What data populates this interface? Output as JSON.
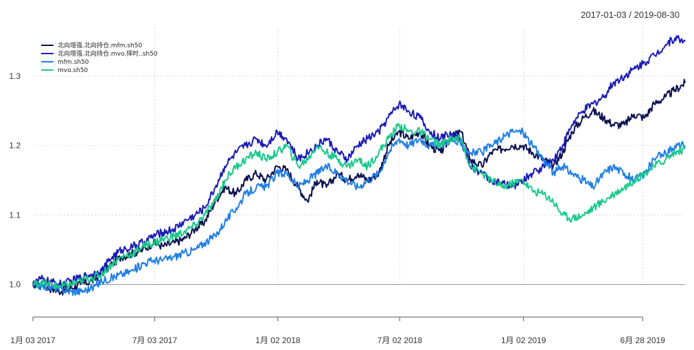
{
  "chart_data": {
    "type": "line",
    "date_range": "2017-01-03 / 2019-08-30",
    "x_tick_labels": [
      "1月 03 2017",
      "7月 03 2017",
      "1月 02 2018",
      "7月 02 2018",
      "1月 02 2019",
      "6月 28 2019"
    ],
    "x_tick_dates": [
      "2017-01-03",
      "2017-07-03",
      "2018-01-02",
      "2018-07-02",
      "2019-01-02",
      "2019-06-28"
    ],
    "xlim": [
      "2017-01-03",
      "2019-08-30"
    ],
    "ylim": [
      0.96,
      1.37
    ],
    "y_ticks": [
      1.0,
      1.1,
      1.2,
      1.3
    ],
    "y_tick_labels": [
      "1.0",
      "1.1",
      "1.2",
      "1.3"
    ],
    "reference_line": 1.0,
    "grid": true,
    "legend_position": "top-left",
    "series": [
      {
        "name": "北向增强.北向持仓.mfm.sh50",
        "color": "#0b1050",
        "points": [
          [
            "2017-01-03",
            1.0
          ],
          [
            "2017-01-15",
            1.0
          ],
          [
            "2017-02-01",
            0.993
          ],
          [
            "2017-02-15",
            0.99
          ],
          [
            "2017-03-01",
            0.995
          ],
          [
            "2017-03-15",
            1.0
          ],
          [
            "2017-04-01",
            1.005
          ],
          [
            "2017-04-15",
            1.015
          ],
          [
            "2017-05-01",
            1.03
          ],
          [
            "2017-05-15",
            1.04
          ],
          [
            "2017-06-01",
            1.045
          ],
          [
            "2017-06-15",
            1.05
          ],
          [
            "2017-07-01",
            1.06
          ],
          [
            "2017-07-15",
            1.055
          ],
          [
            "2017-08-01",
            1.06
          ],
          [
            "2017-08-15",
            1.065
          ],
          [
            "2017-09-01",
            1.08
          ],
          [
            "2017-09-15",
            1.09
          ],
          [
            "2017-10-01",
            1.12
          ],
          [
            "2017-10-15",
            1.14
          ],
          [
            "2017-11-01",
            1.13
          ],
          [
            "2017-11-15",
            1.15
          ],
          [
            "2017-12-01",
            1.16
          ],
          [
            "2017-12-15",
            1.15
          ],
          [
            "2018-01-01",
            1.17
          ],
          [
            "2018-01-15",
            1.165
          ],
          [
            "2018-02-01",
            1.14
          ],
          [
            "2018-02-15",
            1.12
          ],
          [
            "2018-03-01",
            1.15
          ],
          [
            "2018-03-15",
            1.14
          ],
          [
            "2018-04-01",
            1.16
          ],
          [
            "2018-04-15",
            1.15
          ],
          [
            "2018-05-01",
            1.16
          ],
          [
            "2018-05-15",
            1.15
          ],
          [
            "2018-06-01",
            1.16
          ],
          [
            "2018-06-15",
            1.2
          ],
          [
            "2018-07-01",
            1.22
          ],
          [
            "2018-07-15",
            1.21
          ],
          [
            "2018-08-01",
            1.22
          ],
          [
            "2018-08-15",
            1.2
          ],
          [
            "2018-09-01",
            1.19
          ],
          [
            "2018-09-15",
            1.21
          ],
          [
            "2018-10-01",
            1.22
          ],
          [
            "2018-10-15",
            1.18
          ],
          [
            "2018-11-01",
            1.17
          ],
          [
            "2018-11-15",
            1.19
          ],
          [
            "2018-12-01",
            1.195
          ],
          [
            "2018-12-15",
            1.2
          ],
          [
            "2019-01-01",
            1.2
          ],
          [
            "2019-01-15",
            1.19
          ],
          [
            "2019-02-01",
            1.18
          ],
          [
            "2019-02-15",
            1.17
          ],
          [
            "2019-03-01",
            1.19
          ],
          [
            "2019-03-15",
            1.22
          ],
          [
            "2019-04-01",
            1.24
          ],
          [
            "2019-04-15",
            1.25
          ],
          [
            "2019-05-01",
            1.24
          ],
          [
            "2019-05-15",
            1.23
          ],
          [
            "2019-06-01",
            1.23
          ],
          [
            "2019-06-15",
            1.245
          ],
          [
            "2019-07-01",
            1.24
          ],
          [
            "2019-07-15",
            1.26
          ],
          [
            "2019-08-01",
            1.27
          ],
          [
            "2019-08-15",
            1.28
          ],
          [
            "2019-08-30",
            1.29
          ]
        ]
      },
      {
        "name": "北向增强.北向持仓.mvo.择时..sh50",
        "color": "#1a1ab8",
        "points": [
          [
            "2017-01-03",
            1.0
          ],
          [
            "2017-01-15",
            1.008
          ],
          [
            "2017-02-01",
            1.003
          ],
          [
            "2017-02-15",
            1.0
          ],
          [
            "2017-03-01",
            1.005
          ],
          [
            "2017-03-15",
            1.01
          ],
          [
            "2017-04-01",
            1.015
          ],
          [
            "2017-04-15",
            1.02
          ],
          [
            "2017-05-01",
            1.04
          ],
          [
            "2017-05-15",
            1.05
          ],
          [
            "2017-06-01",
            1.055
          ],
          [
            "2017-06-15",
            1.06
          ],
          [
            "2017-07-01",
            1.07
          ],
          [
            "2017-07-15",
            1.075
          ],
          [
            "2017-08-01",
            1.08
          ],
          [
            "2017-08-15",
            1.09
          ],
          [
            "2017-09-01",
            1.1
          ],
          [
            "2017-09-15",
            1.11
          ],
          [
            "2017-10-01",
            1.14
          ],
          [
            "2017-10-15",
            1.17
          ],
          [
            "2017-11-01",
            1.19
          ],
          [
            "2017-11-15",
            1.2
          ],
          [
            "2017-12-01",
            1.21
          ],
          [
            "2017-12-15",
            1.2
          ],
          [
            "2018-01-01",
            1.22
          ],
          [
            "2018-01-15",
            1.21
          ],
          [
            "2018-02-01",
            1.18
          ],
          [
            "2018-02-15",
            1.19
          ],
          [
            "2018-03-01",
            1.2
          ],
          [
            "2018-03-15",
            1.21
          ],
          [
            "2018-04-01",
            1.19
          ],
          [
            "2018-04-15",
            1.18
          ],
          [
            "2018-05-01",
            1.2
          ],
          [
            "2018-05-15",
            1.21
          ],
          [
            "2018-06-01",
            1.22
          ],
          [
            "2018-06-15",
            1.24
          ],
          [
            "2018-07-01",
            1.26
          ],
          [
            "2018-07-15",
            1.25
          ],
          [
            "2018-08-01",
            1.24
          ],
          [
            "2018-08-15",
            1.22
          ],
          [
            "2018-09-01",
            1.21
          ],
          [
            "2018-09-15",
            1.22
          ],
          [
            "2018-10-01",
            1.21
          ],
          [
            "2018-10-15",
            1.17
          ],
          [
            "2018-11-01",
            1.16
          ],
          [
            "2018-11-15",
            1.15
          ],
          [
            "2018-12-01",
            1.145
          ],
          [
            "2018-12-15",
            1.14
          ],
          [
            "2019-01-01",
            1.15
          ],
          [
            "2019-01-15",
            1.16
          ],
          [
            "2019-02-01",
            1.17
          ],
          [
            "2019-02-15",
            1.18
          ],
          [
            "2019-03-01",
            1.2
          ],
          [
            "2019-03-15",
            1.23
          ],
          [
            "2019-04-01",
            1.25
          ],
          [
            "2019-04-15",
            1.26
          ],
          [
            "2019-05-01",
            1.27
          ],
          [
            "2019-05-15",
            1.29
          ],
          [
            "2019-06-01",
            1.3
          ],
          [
            "2019-06-15",
            1.31
          ],
          [
            "2019-07-01",
            1.32
          ],
          [
            "2019-07-15",
            1.33
          ],
          [
            "2019-08-01",
            1.345
          ],
          [
            "2019-08-15",
            1.355
          ],
          [
            "2019-08-30",
            1.35
          ]
        ]
      },
      {
        "name": "mfm.sh50",
        "color": "#1f7fe6",
        "points": [
          [
            "2017-01-03",
            1.0
          ],
          [
            "2017-01-15",
            0.998
          ],
          [
            "2017-02-01",
            0.995
          ],
          [
            "2017-02-15",
            0.993
          ],
          [
            "2017-03-01",
            0.99
          ],
          [
            "2017-03-15",
            0.99
          ],
          [
            "2017-04-01",
            0.995
          ],
          [
            "2017-04-15",
            1.005
          ],
          [
            "2017-05-01",
            1.01
          ],
          [
            "2017-05-15",
            1.015
          ],
          [
            "2017-06-01",
            1.02
          ],
          [
            "2017-06-15",
            1.03
          ],
          [
            "2017-07-01",
            1.035
          ],
          [
            "2017-07-15",
            1.035
          ],
          [
            "2017-08-01",
            1.04
          ],
          [
            "2017-08-15",
            1.045
          ],
          [
            "2017-09-01",
            1.05
          ],
          [
            "2017-09-15",
            1.06
          ],
          [
            "2017-10-01",
            1.07
          ],
          [
            "2017-10-15",
            1.09
          ],
          [
            "2017-11-01",
            1.11
          ],
          [
            "2017-11-15",
            1.13
          ],
          [
            "2017-12-01",
            1.14
          ],
          [
            "2017-12-15",
            1.14
          ],
          [
            "2018-01-01",
            1.16
          ],
          [
            "2018-01-15",
            1.16
          ],
          [
            "2018-02-01",
            1.14
          ],
          [
            "2018-02-15",
            1.15
          ],
          [
            "2018-03-01",
            1.16
          ],
          [
            "2018-03-15",
            1.17
          ],
          [
            "2018-04-01",
            1.16
          ],
          [
            "2018-04-15",
            1.15
          ],
          [
            "2018-05-01",
            1.14
          ],
          [
            "2018-05-15",
            1.15
          ],
          [
            "2018-06-01",
            1.16
          ],
          [
            "2018-06-15",
            1.19
          ],
          [
            "2018-07-01",
            1.21
          ],
          [
            "2018-07-15",
            1.2
          ],
          [
            "2018-08-01",
            1.21
          ],
          [
            "2018-08-15",
            1.2
          ],
          [
            "2018-09-01",
            1.2
          ],
          [
            "2018-09-15",
            1.21
          ],
          [
            "2018-10-01",
            1.2
          ],
          [
            "2018-10-15",
            1.19
          ],
          [
            "2018-11-01",
            1.19
          ],
          [
            "2018-11-15",
            1.2
          ],
          [
            "2018-12-01",
            1.21
          ],
          [
            "2018-12-15",
            1.22
          ],
          [
            "2019-01-01",
            1.22
          ],
          [
            "2019-01-15",
            1.2
          ],
          [
            "2019-02-01",
            1.18
          ],
          [
            "2019-02-15",
            1.16
          ],
          [
            "2019-03-01",
            1.17
          ],
          [
            "2019-03-15",
            1.16
          ],
          [
            "2019-04-01",
            1.15
          ],
          [
            "2019-04-15",
            1.14
          ],
          [
            "2019-05-01",
            1.16
          ],
          [
            "2019-05-15",
            1.17
          ],
          [
            "2019-06-01",
            1.16
          ],
          [
            "2019-06-15",
            1.15
          ],
          [
            "2019-07-01",
            1.16
          ],
          [
            "2019-07-15",
            1.18
          ],
          [
            "2019-08-01",
            1.19
          ],
          [
            "2019-08-15",
            1.2
          ],
          [
            "2019-08-30",
            1.2
          ]
        ]
      },
      {
        "name": "mvo.sh50",
        "color": "#19c98a",
        "points": [
          [
            "2017-01-03",
            1.0
          ],
          [
            "2017-01-15",
            1.003
          ],
          [
            "2017-02-01",
            0.999
          ],
          [
            "2017-02-15",
            0.997
          ],
          [
            "2017-03-01",
            1.0
          ],
          [
            "2017-03-15",
            1.005
          ],
          [
            "2017-04-01",
            1.01
          ],
          [
            "2017-04-15",
            1.015
          ],
          [
            "2017-05-01",
            1.03
          ],
          [
            "2017-05-15",
            1.04
          ],
          [
            "2017-06-01",
            1.045
          ],
          [
            "2017-06-15",
            1.055
          ],
          [
            "2017-07-01",
            1.06
          ],
          [
            "2017-07-15",
            1.065
          ],
          [
            "2017-08-01",
            1.07
          ],
          [
            "2017-08-15",
            1.075
          ],
          [
            "2017-09-01",
            1.085
          ],
          [
            "2017-09-15",
            1.1
          ],
          [
            "2017-10-01",
            1.12
          ],
          [
            "2017-10-15",
            1.15
          ],
          [
            "2017-11-01",
            1.17
          ],
          [
            "2017-11-15",
            1.18
          ],
          [
            "2017-12-01",
            1.19
          ],
          [
            "2017-12-15",
            1.18
          ],
          [
            "2018-01-01",
            1.19
          ],
          [
            "2018-01-15",
            1.2
          ],
          [
            "2018-02-01",
            1.17
          ],
          [
            "2018-02-15",
            1.18
          ],
          [
            "2018-03-01",
            1.2
          ],
          [
            "2018-03-15",
            1.19
          ],
          [
            "2018-04-01",
            1.18
          ],
          [
            "2018-04-15",
            1.17
          ],
          [
            "2018-05-01",
            1.18
          ],
          [
            "2018-05-15",
            1.17
          ],
          [
            "2018-06-01",
            1.19
          ],
          [
            "2018-06-15",
            1.21
          ],
          [
            "2018-07-01",
            1.23
          ],
          [
            "2018-07-15",
            1.22
          ],
          [
            "2018-08-01",
            1.22
          ],
          [
            "2018-08-15",
            1.21
          ],
          [
            "2018-09-01",
            1.2
          ],
          [
            "2018-09-15",
            1.21
          ],
          [
            "2018-10-01",
            1.21
          ],
          [
            "2018-10-15",
            1.17
          ],
          [
            "2018-11-01",
            1.16
          ],
          [
            "2018-11-15",
            1.15
          ],
          [
            "2018-12-01",
            1.14
          ],
          [
            "2018-12-15",
            1.145
          ],
          [
            "2019-01-01",
            1.15
          ],
          [
            "2019-01-15",
            1.135
          ],
          [
            "2019-02-01",
            1.13
          ],
          [
            "2019-02-15",
            1.12
          ],
          [
            "2019-03-01",
            1.1
          ],
          [
            "2019-03-15",
            1.095
          ],
          [
            "2019-04-01",
            1.1
          ],
          [
            "2019-04-15",
            1.11
          ],
          [
            "2019-05-01",
            1.12
          ],
          [
            "2019-05-15",
            1.13
          ],
          [
            "2019-06-01",
            1.14
          ],
          [
            "2019-06-15",
            1.15
          ],
          [
            "2019-07-01",
            1.16
          ],
          [
            "2019-07-15",
            1.17
          ],
          [
            "2019-08-01",
            1.18
          ],
          [
            "2019-08-15",
            1.19
          ],
          [
            "2019-08-30",
            1.195
          ]
        ]
      }
    ]
  }
}
